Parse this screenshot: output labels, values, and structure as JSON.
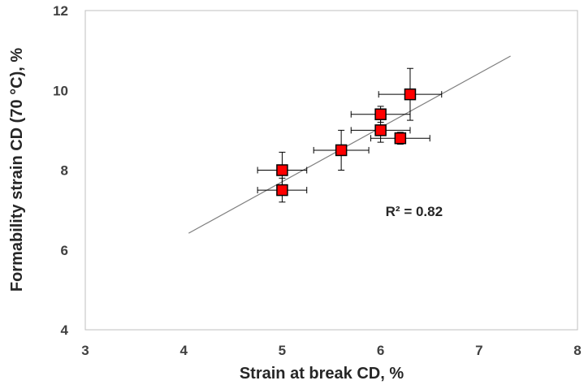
{
  "chart_data": {
    "type": "scatter",
    "xlabel": "Strain at break CD, %",
    "ylabel": "Formability strain CD (70 °C), %",
    "xlim": [
      3,
      8
    ],
    "ylim": [
      4,
      12
    ],
    "x_ticks": [
      "3",
      "4",
      "5",
      "6",
      "7",
      "8"
    ],
    "y_ticks": [
      "4",
      "6",
      "8",
      "10",
      "12"
    ],
    "grid": false,
    "legend": "none",
    "points": [
      {
        "x": 5.0,
        "y": 7.5,
        "x_err": 0.25,
        "y_err": 0.3
      },
      {
        "x": 5.0,
        "y": 8.0,
        "x_err": 0.25,
        "y_err": 0.45
      },
      {
        "x": 5.6,
        "y": 8.5,
        "x_err": 0.28,
        "y_err": 0.5
      },
      {
        "x": 6.0,
        "y": 9.0,
        "x_err": 0.3,
        "y_err": 0.3
      },
      {
        "x": 6.0,
        "y": 9.4,
        "x_err": 0.3,
        "y_err": 0.2
      },
      {
        "x": 6.2,
        "y": 8.8,
        "x_err": 0.3,
        "y_err": 0.15
      },
      {
        "x": 6.3,
        "y": 9.9,
        "x_err": 0.32,
        "y_err": 0.65
      }
    ],
    "trendline": {
      "x": [
        4.05,
        7.32
      ],
      "y": [
        6.42,
        10.86
      ]
    },
    "annotation": "R² = 0.82",
    "annotation_pos": {
      "x": 6.05,
      "y": 6.85
    },
    "colors": {
      "marker_fill": "#ff0000",
      "marker_stroke": "#000000",
      "trendline": "#7f7f7f",
      "axis": "#404040",
      "error_bar": "#000000"
    }
  }
}
